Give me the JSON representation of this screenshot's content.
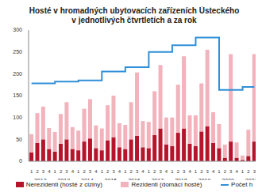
{
  "chart_data": {
    "type": "bar",
    "title": "Hosté v hromadných ubytovacích zařízeních Ústeckého\nv jednotlivých čtvrtletích a za rok",
    "stacked": true,
    "grid": false,
    "categories": [
      "1",
      "2",
      "3",
      "4",
      "1",
      "2",
      "3",
      "4",
      "1",
      "2",
      "3",
      "4",
      "1",
      "2",
      "3",
      "4",
      "1",
      "2",
      "3",
      "4",
      "1",
      "2",
      "3",
      "4",
      "1",
      "2",
      "3",
      "4",
      "1",
      "2",
      "3",
      "4",
      "1",
      "2",
      "3",
      "4",
      "1",
      "2",
      "3"
    ],
    "years": [
      "2012",
      "2013",
      "2014",
      "2015",
      "2016",
      "2017",
      "2018",
      "2019",
      "2020",
      "2021"
    ],
    "ylim": [
      0,
      300
    ],
    "yticks": [
      0,
      50,
      100,
      150,
      200,
      250,
      300
    ],
    "series": [
      {
        "name": "Nerezidenti (hosté z ciziny)",
        "type": "bar",
        "color": "#b5142b",
        "values": [
          20,
          42,
          50,
          28,
          22,
          40,
          50,
          28,
          25,
          45,
          52,
          30,
          25,
          48,
          55,
          32,
          28,
          50,
          58,
          32,
          30,
          60,
          75,
          38,
          35,
          65,
          75,
          40,
          35,
          68,
          80,
          42,
          30,
          8,
          45,
          8,
          3,
          12,
          45
        ]
      },
      {
        "name": "Rezidenti (domácí hosté)",
        "type": "bar",
        "color": "#f2b3bd",
        "values": [
          42,
          68,
          75,
          48,
          45,
          68,
          85,
          50,
          45,
          75,
          90,
          52,
          50,
          80,
          95,
          55,
          55,
          85,
          145,
          60,
          60,
          100,
          145,
          62,
          65,
          110,
          165,
          65,
          70,
          110,
          175,
          70,
          55,
          30,
          200,
          35,
          10,
          60,
          200
        ]
      },
      {
        "name": "Počet h",
        "type": "line",
        "color": "#2f8fd8",
        "values": [
          178,
          178,
          178,
          178,
          182,
          182,
          182,
          182,
          185,
          185,
          185,
          185,
          205,
          205,
          205,
          205,
          215,
          215,
          215,
          215,
          250,
          250,
          250,
          250,
          265,
          265,
          265,
          265,
          283,
          283,
          283,
          283,
          163,
          163,
          163,
          163,
          170,
          170,
          170
        ]
      }
    ]
  }
}
